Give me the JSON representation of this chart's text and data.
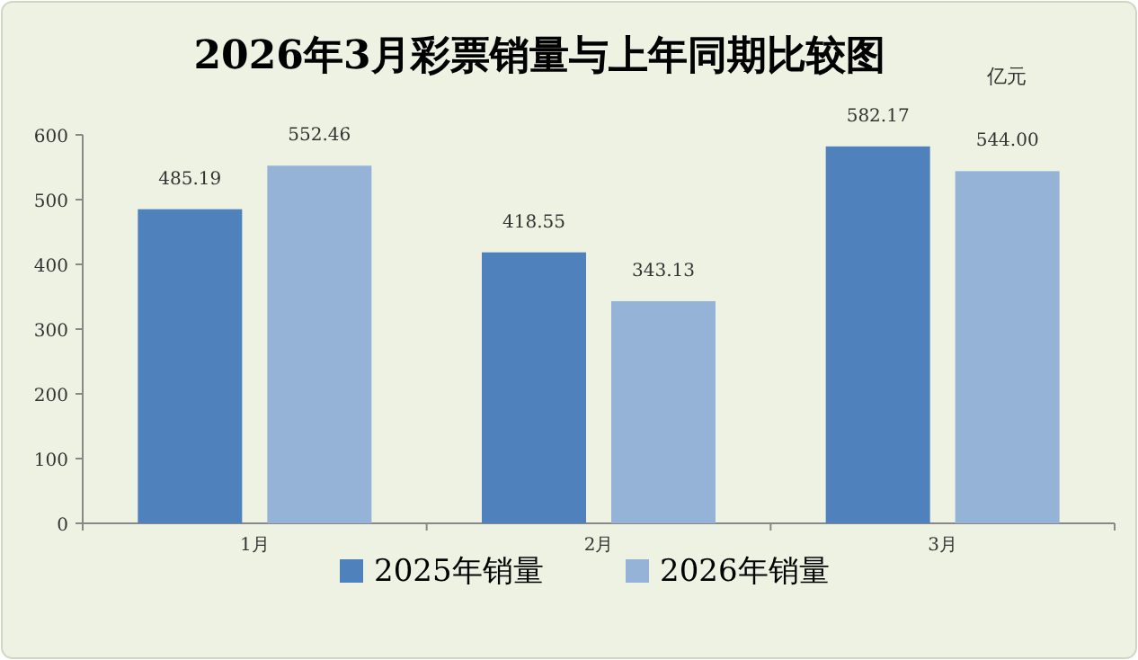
{
  "chart_data": {
    "type": "bar",
    "title": "2026年3月彩票销量与上年同期比较图",
    "ylabel": "亿元",
    "categories": [
      "1月",
      "2月",
      "3月"
    ],
    "series": [
      {
        "name": "2025年销量",
        "color": "#4f81bd",
        "values": [
          485.19,
          418.55,
          582.17
        ]
      },
      {
        "name": "2026年销量",
        "color": "#95b3d7",
        "values": [
          552.46,
          343.13,
          544.0
        ]
      }
    ],
    "value_labels": [
      [
        "485.19",
        "418.55",
        "582.17"
      ],
      [
        "552.46",
        "343.13",
        "544.00"
      ]
    ],
    "ylim": [
      0,
      600
    ],
    "yticks": [
      0,
      100,
      200,
      300,
      400,
      500,
      600
    ],
    "grid": false,
    "legend": "bottom"
  }
}
